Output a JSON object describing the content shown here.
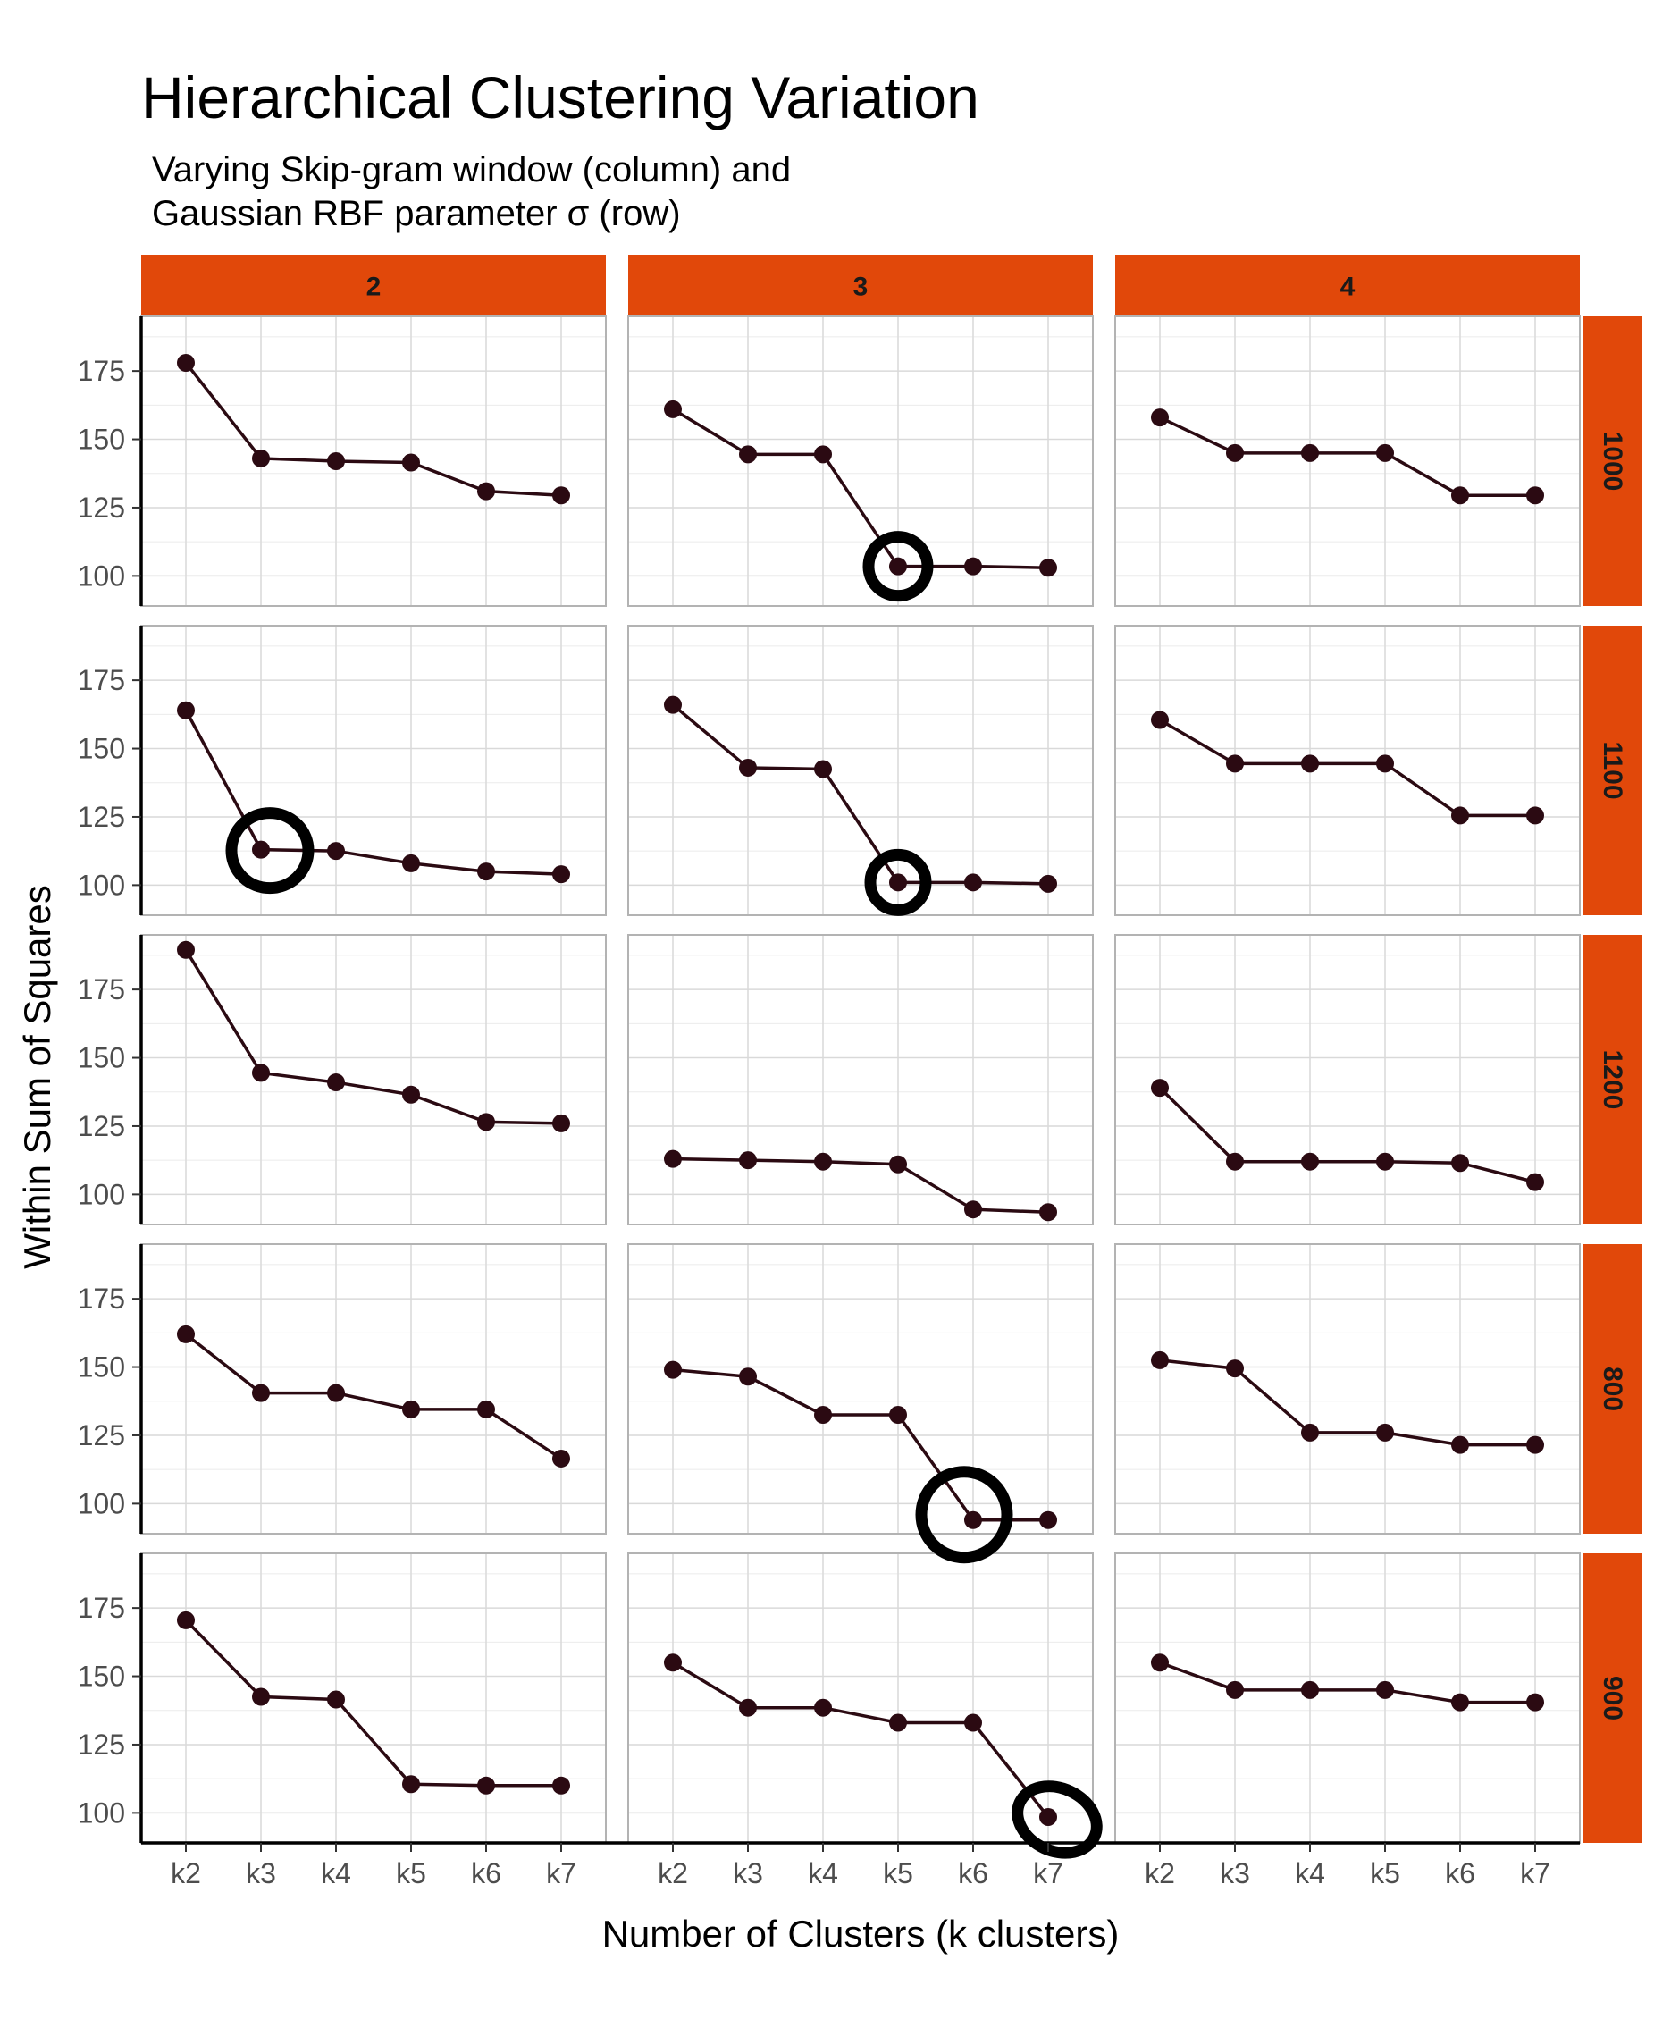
{
  "chart_data": {
    "type": "line",
    "title": "Hierarchical Clustering Variation",
    "subtitle_lines": [
      "Varying Skip-gram window (column) and",
      "Gaussian RBF parameter σ (row)"
    ],
    "xlabel": "Number of Clusters (k clusters)",
    "ylabel": "Within Sum of Squares",
    "categories": [
      "k2",
      "k3",
      "k4",
      "k5",
      "k6",
      "k7"
    ],
    "y_ticks": [
      100,
      125,
      150,
      175
    ],
    "ylim": [
      89,
      195
    ],
    "grid": true,
    "column_facets": [
      "2",
      "3",
      "4"
    ],
    "row_facets": [
      "1000",
      "1100",
      "1200",
      "800",
      "900"
    ],
    "colors": {
      "strip_fill": "#E1480A",
      "line": "#2B0A12",
      "point": "#2B0A12",
      "highlight_ring": "#000000",
      "grid": "#d9d9d9",
      "panel_border": "#b3b3b3"
    },
    "panels": [
      {
        "row": "1000",
        "col": "2",
        "values": [
          178,
          143,
          142,
          141.5,
          131,
          129.5
        ]
      },
      {
        "row": "1000",
        "col": "3",
        "values": [
          161,
          144.5,
          144.5,
          103.5,
          103.5,
          103
        ],
        "highlight": "k5"
      },
      {
        "row": "1000",
        "col": "4",
        "values": [
          158,
          145,
          145,
          145,
          129.5,
          129.5
        ]
      },
      {
        "row": "1100",
        "col": "2",
        "values": [
          164,
          113,
          112.5,
          108,
          105,
          104
        ],
        "highlight": "k3"
      },
      {
        "row": "1100",
        "col": "3",
        "values": [
          166,
          143,
          142.5,
          101,
          101,
          100.5
        ],
        "highlight": "k5"
      },
      {
        "row": "1100",
        "col": "4",
        "values": [
          160.5,
          144.5,
          144.5,
          144.5,
          125.5,
          125.5
        ]
      },
      {
        "row": "1200",
        "col": "2",
        "values": [
          189.5,
          144.5,
          141,
          136.5,
          126.5,
          126
        ]
      },
      {
        "row": "1200",
        "col": "3",
        "values": [
          113,
          112.5,
          112,
          111,
          94.5,
          93.5
        ]
      },
      {
        "row": "1200",
        "col": "4",
        "values": [
          139,
          112,
          112,
          112,
          111.5,
          104.5
        ]
      },
      {
        "row": "800",
        "col": "2",
        "values": [
          162,
          140.5,
          140.5,
          134.5,
          134.5,
          116.5
        ]
      },
      {
        "row": "800",
        "col": "3",
        "values": [
          149,
          146.5,
          132.5,
          132.5,
          94,
          94
        ],
        "highlight": "k6"
      },
      {
        "row": "800",
        "col": "4",
        "values": [
          152.5,
          149.5,
          126,
          126,
          121.5,
          121.5
        ]
      },
      {
        "row": "900",
        "col": "2",
        "values": [
          170.5,
          142.5,
          141.5,
          110.5,
          110,
          110
        ]
      },
      {
        "row": "900",
        "col": "3",
        "values": [
          155,
          138.5,
          138.5,
          133,
          133,
          98.5
        ],
        "highlight": "k7"
      },
      {
        "row": "900",
        "col": "4",
        "values": [
          155,
          145,
          145,
          145,
          140.5,
          140.5
        ]
      }
    ]
  }
}
